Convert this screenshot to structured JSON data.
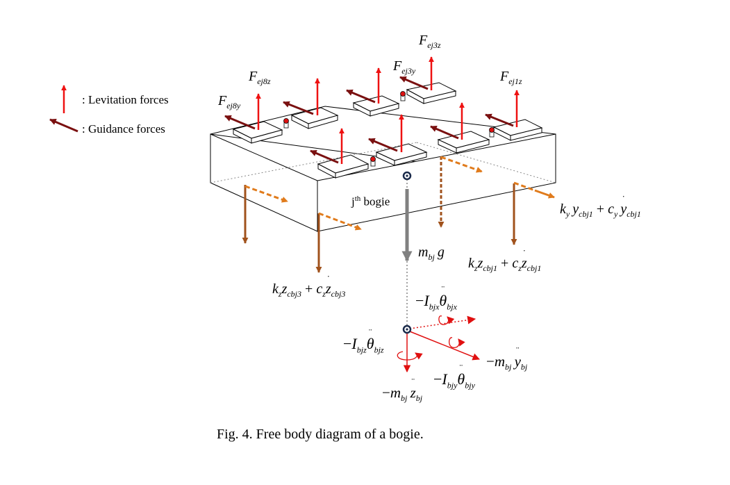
{
  "colors": {
    "levitation": "#ee1111",
    "guidance": "#7a1010",
    "suspension": "#a0521c",
    "spring_dashed": "#e07b1c",
    "gravity": "#808080",
    "inertia": "#e01010",
    "body_edge": "#000000"
  },
  "legend": {
    "levitation_label": ": Levitation forces",
    "guidance_label": ": Guidance forces",
    "levitation_icon": "up-red-arrow",
    "guidance_icon": "dark-red-diagonal-arrow"
  },
  "bogie_label": {
    "base": "j",
    "sup": "th",
    "rest": " bogie"
  },
  "forces": {
    "F_ej3z": {
      "sym": "F",
      "sub": "ej3z"
    },
    "F_ej3y": {
      "sym": "F",
      "sub": "ej3y"
    },
    "F_ej8z": {
      "sym": "F",
      "sub": "ej8z"
    },
    "F_ej8y": {
      "sym": "F",
      "sub": "ej8y"
    },
    "F_ej1z": {
      "sym": "F",
      "sub": "ej1z"
    }
  },
  "weight": {
    "m": "m",
    "m_sub": "bj",
    "g": "g"
  },
  "spring_y1": {
    "k": "k",
    "k_sub": "y",
    "var": "y",
    "var_sub": "cbj1",
    "plus": "+",
    "c": "c",
    "c_sub": "y",
    "dot": "˙",
    "var2": "y",
    "var2_sub": "cbj1"
  },
  "spring_z1": {
    "k": "k",
    "k_sub": "z",
    "var": "z",
    "var_sub": "cbj1",
    "plus": "+",
    "c": "c",
    "c_sub": "z",
    "dot": "˙",
    "var2": "z",
    "var2_sub": "cbj1"
  },
  "spring_z3": {
    "k": "k",
    "k_sub": "z",
    "var": "z",
    "var_sub": "cbj3",
    "plus": "+",
    "c": "c",
    "c_sub": "z",
    "dot": "˙",
    "var2": "z",
    "var2_sub": "cbj3"
  },
  "inertia": {
    "Ix": {
      "minus": "−",
      "I": "I",
      "I_sub": "bjx",
      "ddot": "¨",
      "theta": "θ",
      "theta_sub": "bjx"
    },
    "Iz": {
      "minus": "−",
      "I": "I",
      "I_sub": "bjz",
      "ddot": "¨",
      "theta": "θ",
      "theta_sub": "bjz"
    },
    "Iy": {
      "minus": "−",
      "I": "I",
      "I_sub": "bjy",
      "ddot": "¨",
      "theta": "θ",
      "theta_sub": "bjy"
    },
    "my": {
      "minus": "−",
      "m": "m",
      "m_sub": "bj",
      "ddot": "¨",
      "var": "y",
      "var_sub": "bj"
    },
    "mz": {
      "minus": "−",
      "m": "m",
      "m_sub": "bj",
      "ddot": "¨",
      "var": "z",
      "var_sub": "bj"
    }
  },
  "caption": "Fig. 4.  Free body diagram of a bogie."
}
